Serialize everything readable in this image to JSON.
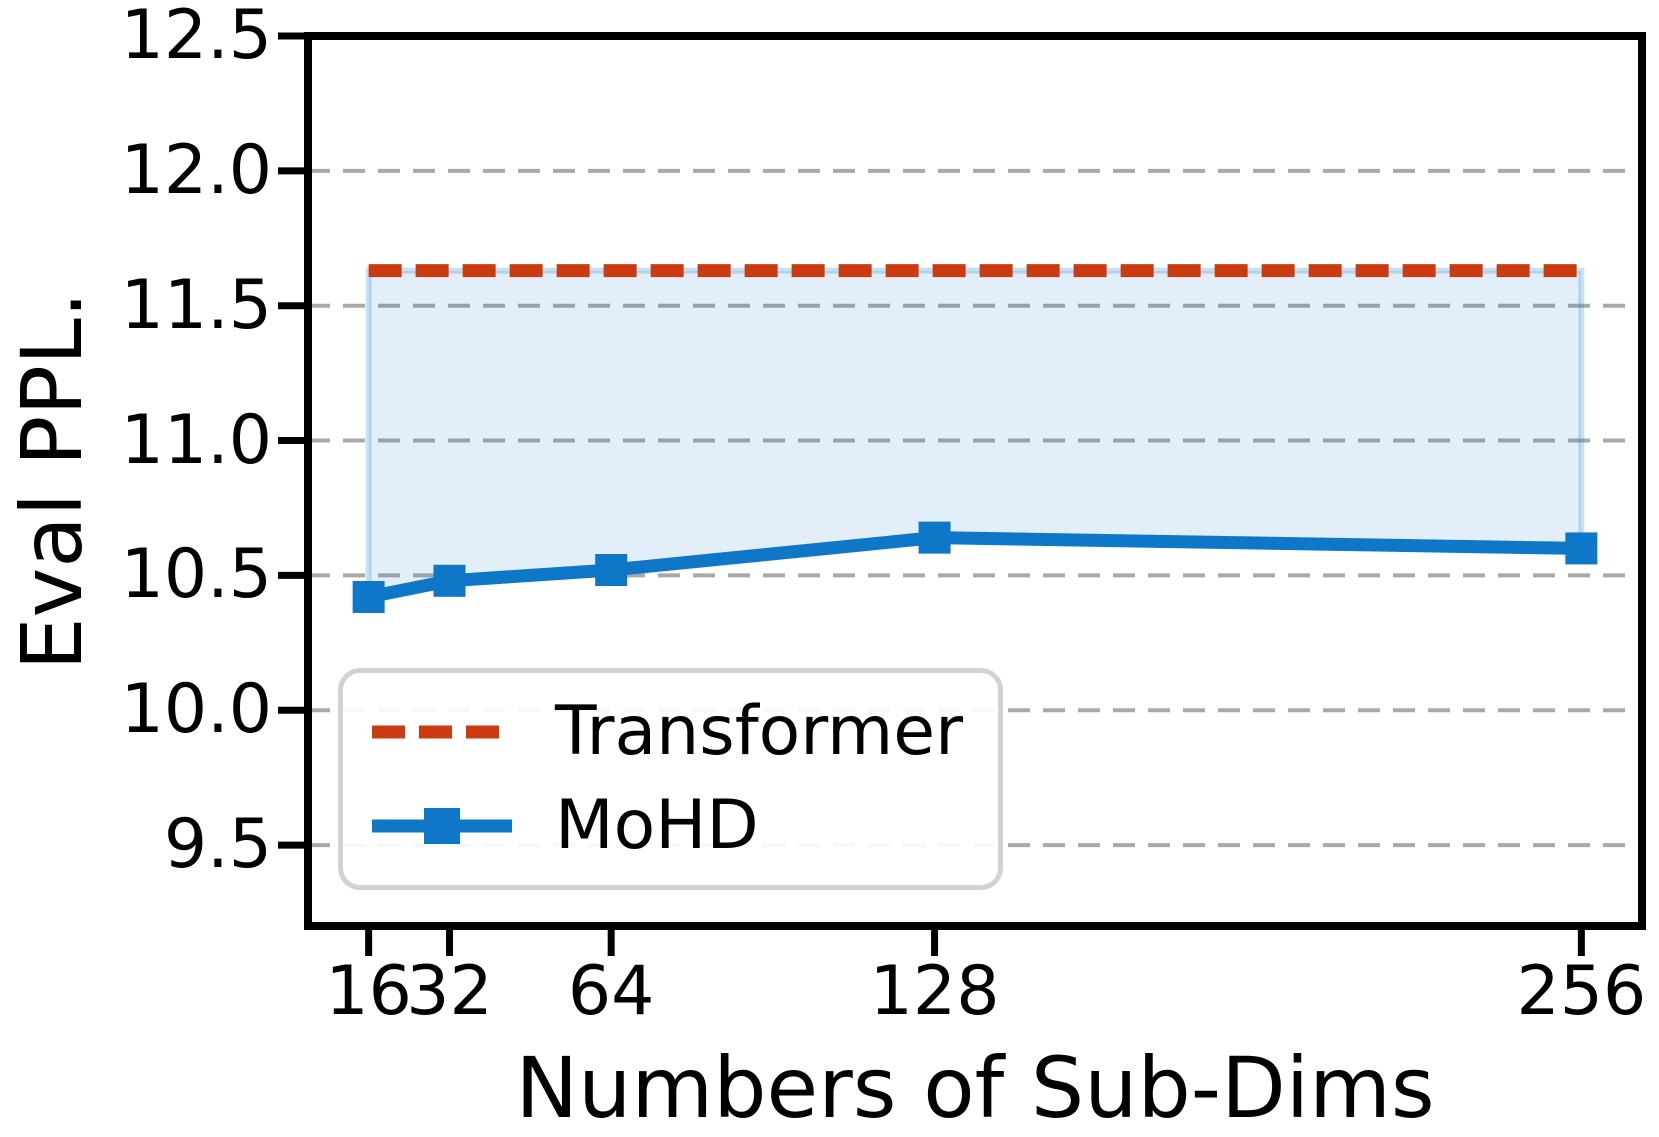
{
  "chart_data": {
    "type": "line",
    "title": "",
    "xlabel": "Numbers of Sub-Dims",
    "ylabel": "Eval PPL.",
    "x": [
      16,
      32,
      64,
      128,
      256
    ],
    "xtick_labels": [
      "16",
      "32",
      "64",
      "128",
      "256"
    ],
    "xlim": [
      4,
      268
    ],
    "yticks": [
      9.5,
      10.0,
      10.5,
      11.0,
      11.5,
      12.0,
      12.5
    ],
    "ytick_labels": [
      "9.5",
      "10.0",
      "10.5",
      "11.0",
      "11.5",
      "12.0",
      "12.5"
    ],
    "ylim": [
      9.2,
      12.5
    ],
    "grid": "horizontal-dashed",
    "legend_position": "lower-left",
    "series": [
      {
        "name": "Transformer",
        "style": "dashed",
        "marker": "none",
        "color": "#cc3b10",
        "values": [
          11.63,
          11.63,
          11.63,
          11.63,
          11.63
        ]
      },
      {
        "name": "MoHD",
        "style": "solid",
        "marker": "square",
        "color": "#0e77c8",
        "values": [
          10.42,
          10.48,
          10.52,
          10.64,
          10.6
        ]
      }
    ],
    "fill_between": {
      "upper": "Transformer",
      "lower": "MoHD",
      "color": "#0e77c8",
      "opacity": 0.12
    },
    "colors": {
      "grid": "#a9a9a9",
      "spine": "#000000",
      "legend_border": "#d2d2d2"
    }
  }
}
